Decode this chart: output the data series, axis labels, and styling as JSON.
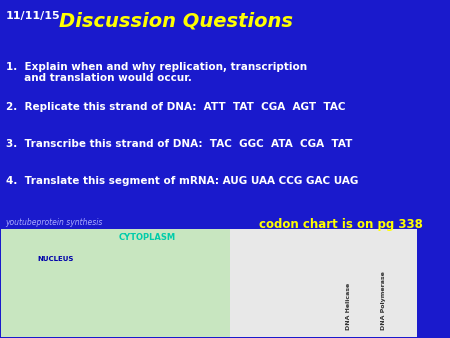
{
  "date": "11/11/15",
  "title": "Discussion Questions",
  "background_color": "#1a1acc",
  "title_color": "#ffff00",
  "date_color": "#ffffff",
  "text_color": "#ffffff",
  "link_color": "#aaaaff",
  "highlight_color": "#ffff00",
  "lines": [
    "1.  Explain when and why replication, transcription\n     and translation would occur.",
    "2.  Replicate this strand of DNA:  ATT  TAT  CGA  AGT  TAC",
    "3.  Transcribe this strand of DNA:  TAC  GGC  ATA  CGA  TAT",
    "4.  Translate this segment of mRNA: AUG UAA CCG GAC UAG"
  ],
  "link_text": "youtubeprotein synthesis",
  "codon_text": "codon chart is on pg 338"
}
